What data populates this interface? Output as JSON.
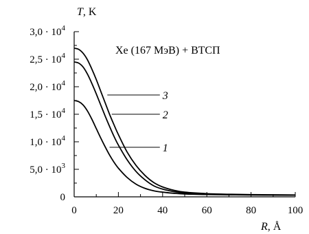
{
  "chart_data": {
    "type": "line",
    "annotation": "Xe (167 МэВ) + ВТСП",
    "y_label": {
      "var": "T",
      "unit": ", K"
    },
    "x_label": {
      "var": "R",
      "unit": ", Å"
    },
    "xlim": [
      0,
      100
    ],
    "ylim": [
      0,
      30000
    ],
    "x_ticks": [
      {
        "value": 0,
        "label": "0"
      },
      {
        "value": 20,
        "label": "20"
      },
      {
        "value": 40,
        "label": "40"
      },
      {
        "value": 60,
        "label": "60"
      },
      {
        "value": 80,
        "label": "80"
      },
      {
        "value": 100,
        "label": "100"
      }
    ],
    "y_ticks": [
      {
        "value": 0,
        "mant": "0",
        "exp": ""
      },
      {
        "value": 5000,
        "mant": "5,0 · 10",
        "exp": "3"
      },
      {
        "value": 10000,
        "mant": "1,0 · 10",
        "exp": "4"
      },
      {
        "value": 15000,
        "mant": "1,5 · 10",
        "exp": "4"
      },
      {
        "value": 20000,
        "mant": "2,0 · 10",
        "exp": "4"
      },
      {
        "value": 25000,
        "mant": "2,5 · 10",
        "exp": "4"
      },
      {
        "value": 30000,
        "mant": "3,0 · 10",
        "exp": "4"
      }
    ],
    "series": [
      {
        "label": "1",
        "label_at": {
          "x": 40,
          "y": 9000
        },
        "leader_from": {
          "x": 16,
          "y": 9000
        },
        "x": [
          0,
          2,
          4,
          6,
          8,
          10,
          12,
          14,
          16,
          18,
          20,
          24,
          28,
          32,
          36,
          40,
          45,
          50,
          60,
          70,
          80,
          100
        ],
        "y": [
          17500,
          17300,
          16700,
          15600,
          14100,
          12400,
          10700,
          9100,
          7600,
          6300,
          5200,
          3500,
          2300,
          1550,
          1100,
          850,
          650,
          520,
          420,
          370,
          330,
          300
        ]
      },
      {
        "label": "2",
        "label_at": {
          "x": 40,
          "y": 15000
        },
        "leader_from": {
          "x": 17,
          "y": 15000
        },
        "x": [
          0,
          2,
          4,
          6,
          8,
          10,
          12,
          14,
          16,
          18,
          20,
          24,
          28,
          32,
          36,
          40,
          45,
          50,
          60,
          70,
          80,
          100
        ],
        "y": [
          24500,
          24300,
          23600,
          22300,
          20600,
          18700,
          16700,
          14700,
          12800,
          11000,
          9400,
          6700,
          4600,
          3100,
          2000,
          1400,
          950,
          700,
          500,
          420,
          370,
          320
        ]
      },
      {
        "label": "3",
        "label_at": {
          "x": 40,
          "y": 18500
        },
        "leader_from": {
          "x": 15,
          "y": 18500
        },
        "x": [
          0,
          2,
          4,
          6,
          8,
          10,
          12,
          14,
          16,
          18,
          20,
          24,
          28,
          32,
          36,
          40,
          45,
          50,
          60,
          70,
          80,
          100
        ],
        "y": [
          27000,
          26800,
          26100,
          24900,
          23200,
          21300,
          19200,
          17100,
          15000,
          13100,
          11300,
          8100,
          5700,
          3900,
          2600,
          1800,
          1200,
          850,
          580,
          470,
          400,
          340
        ]
      }
    ]
  }
}
